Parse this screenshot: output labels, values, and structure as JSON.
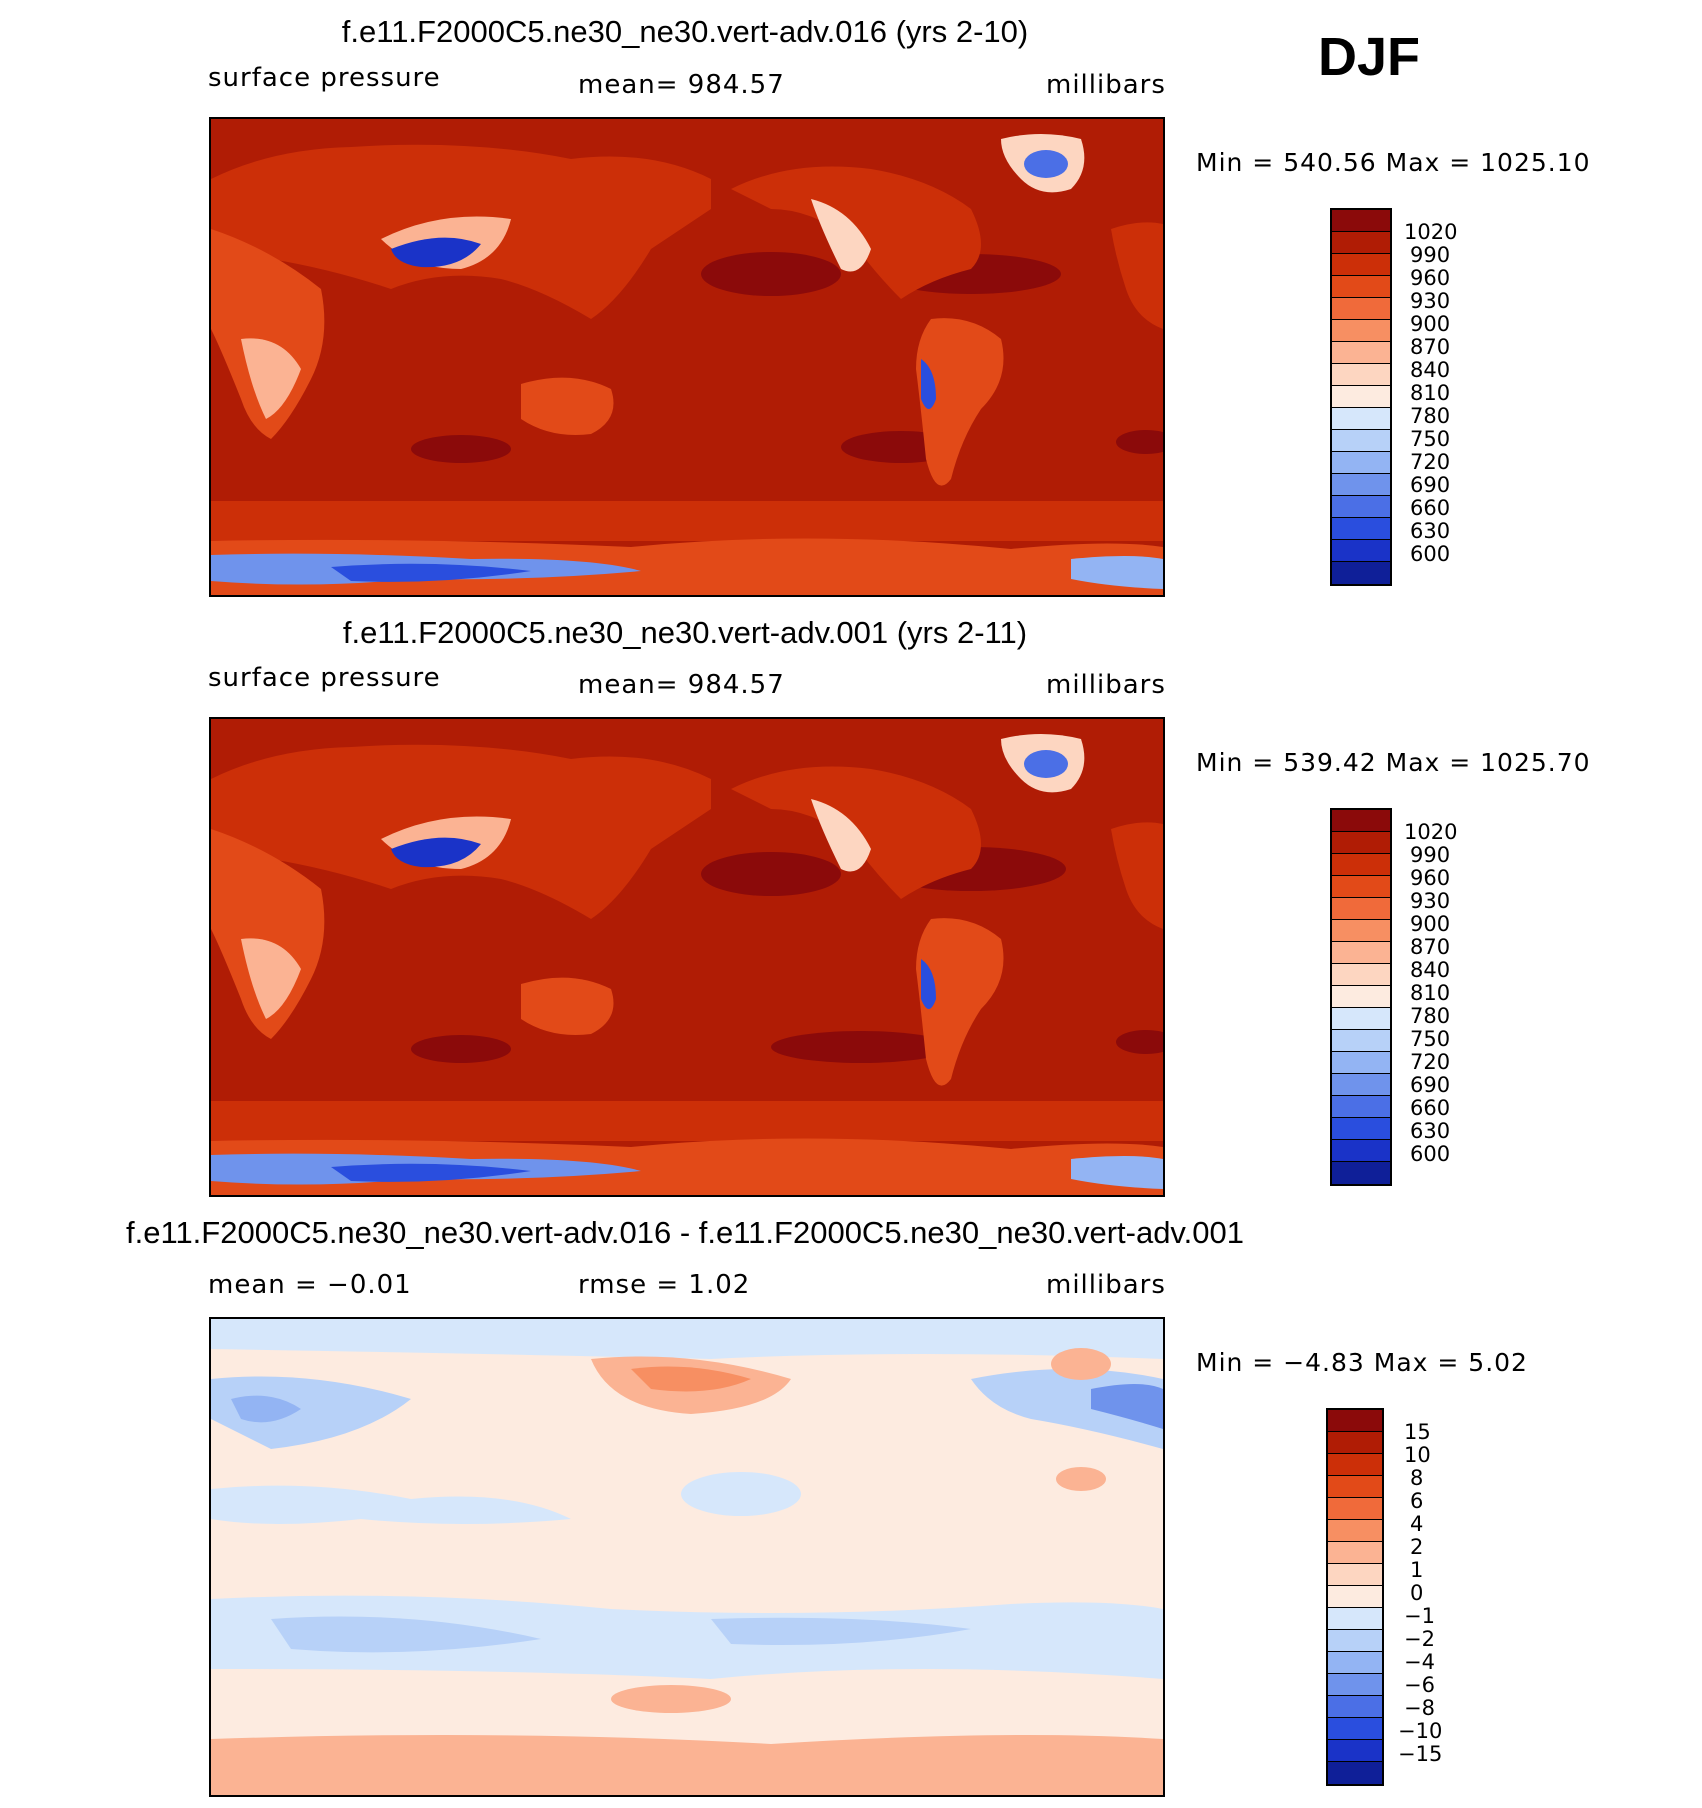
{
  "season": "DJF",
  "panels": [
    {
      "title": "f.e11.F2000C5.ne30_ne30.vert-adv.016 (yrs 2-10)",
      "left_label": "surface pressure",
      "center_label": "mean=  984.57",
      "right_label": "millibars",
      "minmax": "Min  =  540.56  Max  =  1025.10"
    },
    {
      "title": "f.e11.F2000C5.ne30_ne30.vert-adv.001 (yrs 2-11)",
      "left_label": "surface pressure",
      "center_label": "mean=  984.57",
      "right_label": "millibars",
      "minmax": "Min  =  539.42  Max  =  1025.70"
    },
    {
      "title": "f.e11.F2000C5.ne30_ne30.vert-adv.016 - f.e11.F2000C5.ne30_ne30.vert-adv.001",
      "left_label": "mean  =   −0.01",
      "center_label": "rmse  =     1.02",
      "right_label": "millibars",
      "minmax": "Min  =    −4.83  Max  =     5.02"
    }
  ],
  "colorbars": {
    "pressure": {
      "labels": [
        "1020",
        "990",
        "960",
        "930",
        "900",
        "870",
        "840",
        "810",
        "780",
        "750",
        "720",
        "690",
        "660",
        "630",
        "600"
      ],
      "colors": [
        "#8b0a0a",
        "#b01c05",
        "#cc2f08",
        "#e24a18",
        "#f06a3a",
        "#f78f62",
        "#fbb393",
        "#fdd6c1",
        "#fdebe0",
        "#d6e7fb",
        "#b7d1f8",
        "#93b4f3",
        "#6f93ec",
        "#4b6fe6",
        "#2a4ede",
        "#1a33c8",
        "#0f1f98"
      ]
    },
    "difference": {
      "labels": [
        "15",
        "10",
        "8",
        "6",
        "4",
        "2",
        "1",
        "0",
        "−1",
        "−2",
        "−4",
        "−6",
        "−8",
        "−10",
        "−15"
      ],
      "colors": [
        "#8b0a0a",
        "#b01c05",
        "#cc2f08",
        "#e24a18",
        "#f06a3a",
        "#f78f62",
        "#fbb393",
        "#fdd6c1",
        "#fdebe0",
        "#d6e7fb",
        "#b7d1f8",
        "#93b4f3",
        "#6f93ec",
        "#4b6fe6",
        "#2a4ede",
        "#1a33c8",
        "#0f1f98"
      ]
    }
  }
}
